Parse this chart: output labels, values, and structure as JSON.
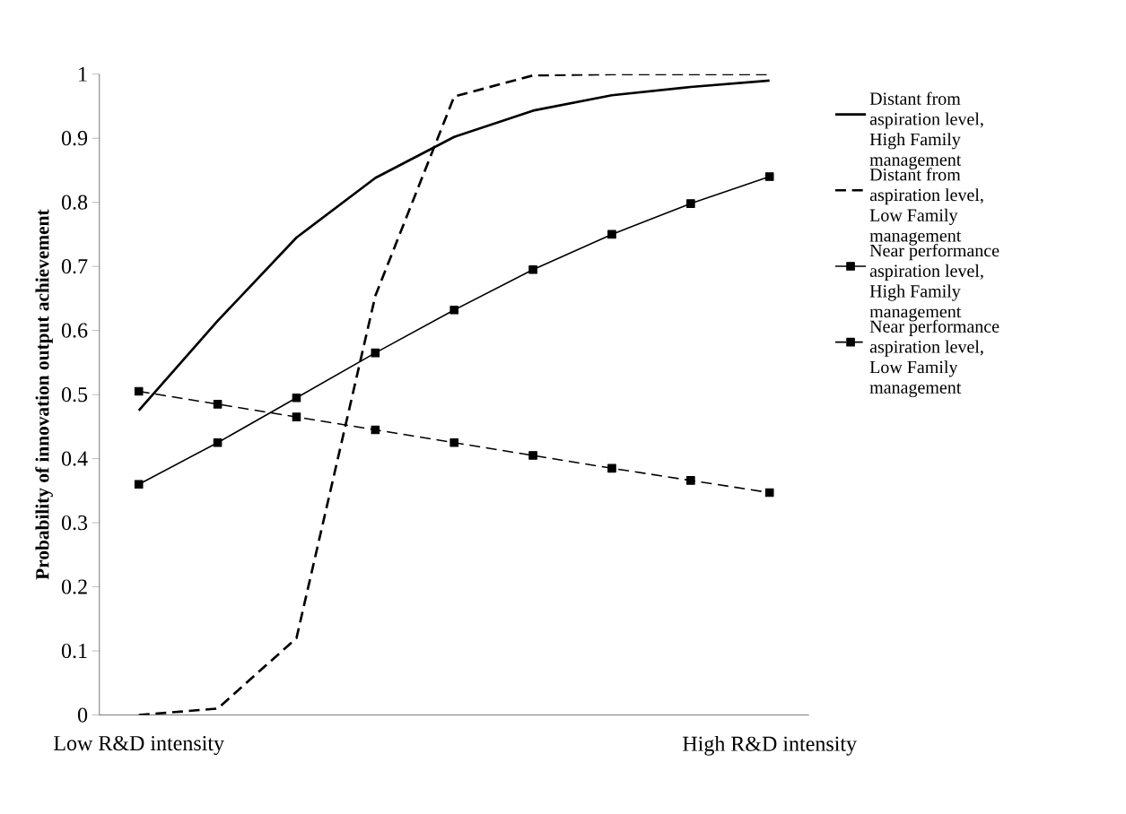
{
  "chart_data": {
    "type": "line",
    "ylabel": "Probability of innovation output achievement",
    "categories": [
      "Low R&D intensity",
      null,
      null,
      null,
      null,
      null,
      null,
      null,
      "High R&D intensity"
    ],
    "ylim": [
      0,
      1
    ],
    "yticks": [
      0,
      0.1,
      0.2,
      0.3,
      0.4,
      0.5,
      0.6,
      0.7,
      0.8,
      0.9,
      1
    ],
    "legend": "right",
    "grid": false,
    "series": [
      {
        "name": "Distant from aspiration level, High Family management",
        "color": "#000000",
        "line_style": "solid",
        "marker": "none",
        "values": [
          0.475,
          0.615,
          0.745,
          0.838,
          0.902,
          0.943,
          0.967,
          0.98,
          0.99
        ]
      },
      {
        "name": "Distant from aspiration level, Low Family management",
        "color": "#000000",
        "line_style": "dashed",
        "marker": "none",
        "values": [
          0,
          0.01,
          0.12,
          0.654,
          0.965,
          0.998,
          1,
          1,
          1
        ]
      },
      {
        "name": "Near performance aspiration level, High Family management",
        "color": "#000000",
        "line_style": "solid",
        "marker": "square",
        "values": [
          0.36,
          0.425,
          0.495,
          0.565,
          0.632,
          0.695,
          0.75,
          0.798,
          0.84
        ]
      },
      {
        "name": "Near performance aspiration level, Low Family management",
        "color": "#000000",
        "line_style": "dashed",
        "marker": "square",
        "values": [
          0.505,
          0.485,
          0.465,
          0.445,
          0.425,
          0.405,
          0.385,
          0.366,
          0.347
        ]
      }
    ]
  }
}
